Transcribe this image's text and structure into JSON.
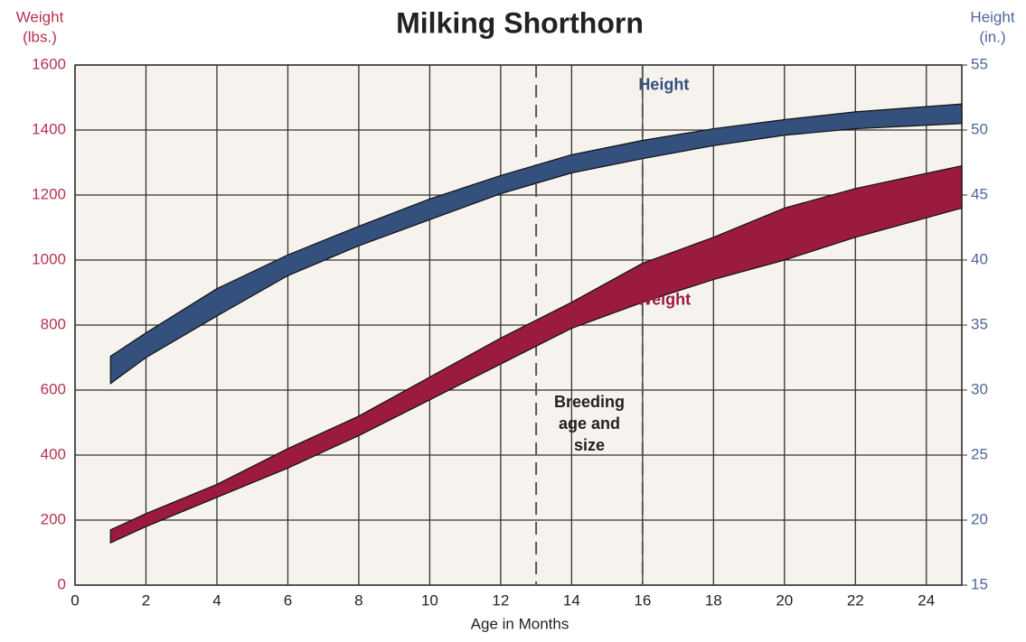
{
  "chart_data": {
    "type": "band",
    "title": "Milking Shorthorn",
    "x_label": "Age in Months",
    "y_label": [
      "Weight",
      "(lbs.)"
    ],
    "y2_label": [
      "Height",
      "(in.)"
    ],
    "y_label_color": "#b8324f",
    "y2_label_color": "#50679a",
    "xlim": [
      0,
      25
    ],
    "xticks": [
      0,
      2,
      4,
      6,
      8,
      10,
      12,
      14,
      16,
      18,
      20,
      22,
      24
    ],
    "ylim": [
      0,
      1600
    ],
    "yticks": [
      0,
      200,
      400,
      600,
      800,
      1000,
      1200,
      1400,
      1600
    ],
    "y2lim": [
      15,
      55
    ],
    "y2ticks": [
      15,
      20,
      25,
      30,
      35,
      40,
      45,
      50,
      55
    ],
    "grid": true,
    "series": [
      {
        "name": "Height",
        "axis": "y2",
        "color": "#34507c",
        "x": [
          1,
          2,
          4,
          6,
          8,
          10,
          12,
          14,
          16,
          18,
          20,
          22,
          25
        ],
        "upper": [
          32.6,
          34.4,
          37.8,
          40.4,
          42.6,
          44.7,
          46.5,
          48.1,
          49.2,
          50.1,
          50.8,
          51.4,
          52.0
        ],
        "lower": [
          30.5,
          32.5,
          35.7,
          38.8,
          41.1,
          43.1,
          45.1,
          46.7,
          47.8,
          48.8,
          49.6,
          50.1,
          50.5
        ]
      },
      {
        "name": "Weight",
        "axis": "y",
        "color": "#9b1b3e",
        "x": [
          1,
          2,
          4,
          6,
          8,
          10,
          12,
          14,
          16,
          18,
          20,
          22,
          25
        ],
        "upper": [
          170,
          220,
          310,
          420,
          520,
          640,
          760,
          870,
          990,
          1070,
          1160,
          1220,
          1290
        ],
        "lower": [
          130,
          180,
          270,
          360,
          460,
          570,
          680,
          790,
          870,
          940,
          1000,
          1070,
          1160
        ]
      }
    ],
    "annotation": {
      "text": [
        "Breeding",
        "age and",
        "size"
      ],
      "x_range": [
        13,
        16
      ]
    }
  }
}
